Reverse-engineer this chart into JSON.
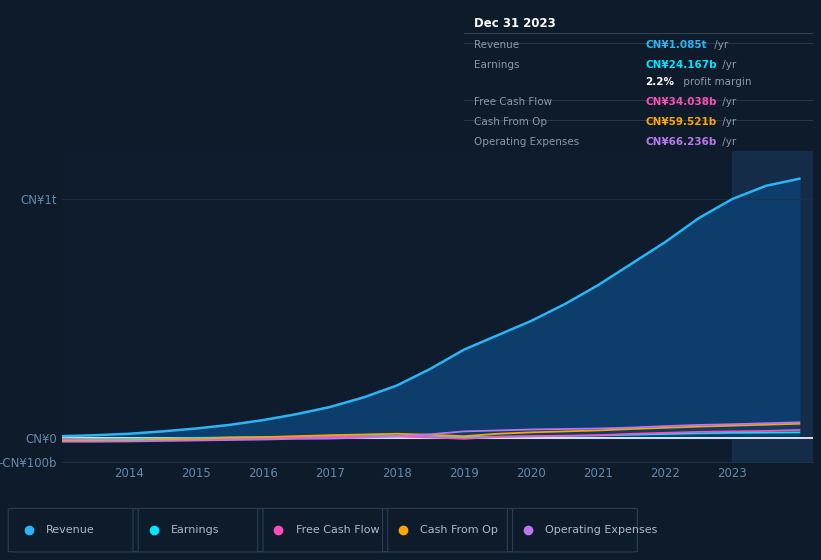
{
  "bg_color": "#0d1b2a",
  "plot_bg_color": "#0e1c2e",
  "years": [
    2013.0,
    2013.5,
    2014.0,
    2014.5,
    2015.0,
    2015.5,
    2016.0,
    2016.5,
    2017.0,
    2017.5,
    2018.0,
    2018.5,
    2019.0,
    2019.5,
    2020.0,
    2020.5,
    2021.0,
    2021.5,
    2022.0,
    2022.5,
    2023.0,
    2023.5,
    2024.0
  ],
  "revenue": [
    8,
    12,
    18,
    28,
    40,
    55,
    75,
    100,
    130,
    170,
    220,
    290,
    370,
    430,
    490,
    560,
    640,
    730,
    820,
    920,
    1000,
    1055,
    1085
  ],
  "earnings": [
    -3,
    -4,
    -3,
    -2,
    1,
    3,
    4,
    5,
    7,
    8,
    9,
    7,
    5,
    6,
    7,
    9,
    11,
    14,
    17,
    20,
    22,
    23,
    24
  ],
  "free_cash_flow": [
    -5,
    -8,
    -8,
    -7,
    -5,
    -3,
    -2,
    3,
    4,
    6,
    7,
    3,
    -3,
    5,
    8,
    10,
    12,
    18,
    22,
    26,
    28,
    30,
    34
  ],
  "cash_from_op": [
    -10,
    -10,
    -9,
    -5,
    -3,
    2,
    4,
    8,
    12,
    15,
    18,
    14,
    8,
    18,
    24,
    28,
    32,
    38,
    43,
    48,
    52,
    56,
    60
  ],
  "operating_expenses": [
    -15,
    -15,
    -14,
    -12,
    -10,
    -8,
    -6,
    -3,
    -2,
    2,
    8,
    16,
    28,
    32,
    36,
    38,
    40,
    44,
    50,
    55,
    58,
    62,
    66
  ],
  "revenue_color": "#29b6f6",
  "revenue_fill": "#0d3d6b",
  "earnings_color": "#00e5ff",
  "free_cash_flow_color": "#ff4db8",
  "cash_from_op_color": "#ffa500",
  "operating_expenses_color": "#bb77ee",
  "ylim_min": -100,
  "ylim_max": 1200,
  "ytick_positions": [
    -100,
    0,
    1000
  ],
  "ytick_labels": [
    "-CN¥100b",
    "CN¥0",
    "CN¥1t"
  ],
  "xtick_positions": [
    2014,
    2015,
    2016,
    2017,
    2018,
    2019,
    2020,
    2021,
    2022,
    2023
  ],
  "xtick_labels": [
    "2014",
    "2015",
    "2016",
    "2017",
    "2018",
    "2019",
    "2020",
    "2021",
    "2022",
    "2023"
  ],
  "highlight_start": 2023.0,
  "highlight_end": 2024.2,
  "xlim_min": 2013.0,
  "xlim_max": 2024.2,
  "grid_color": "#1e3048",
  "zero_line_color": "#ffffff",
  "tick_color": "#6688aa",
  "info_box": {
    "date": "Dec 31 2023",
    "rows": [
      {
        "label": "Revenue",
        "val": "CN¥1.085t",
        "val_color": "#29b6f6",
        "suffix": " /yr",
        "is_margin": false
      },
      {
        "label": "Earnings",
        "val": "CN¥24.167b",
        "val_color": "#00e5ff",
        "suffix": " /yr",
        "is_margin": false
      },
      {
        "label": "",
        "val": "2.2%",
        "val_color": "#ffffff",
        "suffix": " profit margin",
        "is_margin": true
      },
      {
        "label": "Free Cash Flow",
        "val": "CN¥34.038b",
        "val_color": "#ff4db8",
        "suffix": " /yr",
        "is_margin": false
      },
      {
        "label": "Cash From Op",
        "val": "CN¥59.521b",
        "val_color": "#ffa500",
        "suffix": " /yr",
        "is_margin": false
      },
      {
        "label": "Operating Expenses",
        "val": "CN¥66.236b",
        "val_color": "#bb77ee",
        "suffix": " /yr",
        "is_margin": false
      }
    ],
    "box_facecolor": "#050d18",
    "border_color": "#334455",
    "label_color": "#8899aa",
    "date_color": "#ffffff"
  },
  "legend_items": [
    {
      "label": "Revenue",
      "color": "#29b6f6"
    },
    {
      "label": "Earnings",
      "color": "#00e5ff"
    },
    {
      "label": "Free Cash Flow",
      "color": "#ff4db8"
    },
    {
      "label": "Cash From Op",
      "color": "#ffa500"
    },
    {
      "label": "Operating Expenses",
      "color": "#bb77ee"
    }
  ]
}
